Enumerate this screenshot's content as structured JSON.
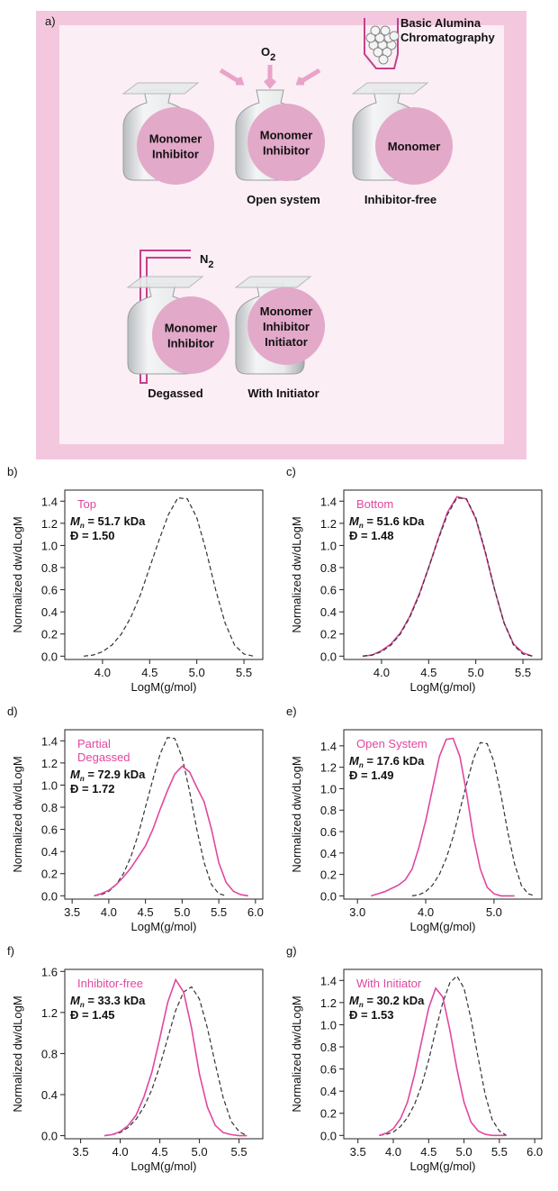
{
  "diagram": {
    "panel_label": "a)",
    "oxygen": "O",
    "oxygen_sub": "2",
    "nitrogen": "N",
    "nitrogen_sub": "2",
    "column_label": [
      "Basic Alumina",
      "Chromatography"
    ],
    "vials": [
      {
        "contents": [
          "Monomer",
          "Inhibitor"
        ]
      },
      {
        "contents": [
          "Monomer",
          "Inhibitor"
        ],
        "caption": "Open system"
      },
      {
        "contents": [
          "Monomer"
        ],
        "caption": "Inhibitor-free"
      },
      {
        "contents": [
          "Monomer",
          "Inhibitor"
        ],
        "caption": "Degassed"
      },
      {
        "contents": [
          "Monomer",
          "Inhibitor",
          "Initiator"
        ],
        "caption": "With Initiator"
      }
    ]
  },
  "chart_data": [
    {
      "type": "line",
      "panel_label": "b)",
      "annotation": [
        "Top"
      ],
      "mn_symbol": "M",
      "mn_subscript": "n",
      "mn_value": " = 51.7 kDa",
      "dispersity": "Đ = 1.50",
      "x_label": "LogM(g/mol)",
      "y_label": "Normalized dw/dLogM",
      "x": [
        3.8,
        3.9,
        4.0,
        4.1,
        4.2,
        4.3,
        4.4,
        4.5,
        4.6,
        4.7,
        4.8,
        4.9,
        5.0,
        5.1,
        5.2,
        5.3,
        5.4,
        5.5,
        5.6
      ],
      "series": [
        {
          "color": "#333333",
          "dashed": true,
          "values": [
            0,
            0.01,
            0.04,
            0.1,
            0.2,
            0.35,
            0.55,
            0.8,
            1.05,
            1.28,
            1.43,
            1.42,
            1.25,
            0.95,
            0.6,
            0.3,
            0.1,
            0.02,
            0
          ]
        }
      ],
      "xlim": [
        3.6,
        5.7
      ],
      "ylim": [
        -0.03,
        1.5
      ],
      "xticks": [
        {
          "value": 4.0,
          "label": "4.0"
        },
        4.5,
        {
          "value": 5.0,
          "label": "5.0"
        },
        5.5
      ],
      "yticks": [
        {
          "value": 0,
          "label": "0.0"
        },
        0.2,
        0.4,
        0.6,
        0.8,
        {
          "value": 1,
          "label": "1.0"
        },
        1.2,
        1.4
      ]
    },
    {
      "type": "line",
      "panel_label": "c)",
      "annotation": [
        "Bottom"
      ],
      "mn_symbol": "M",
      "mn_subscript": "n",
      "mn_value": " = 51.6 kDa",
      "dispersity": "Đ = 1.48",
      "x_label": "LogM(g/mol)",
      "y_label": "Normalized dw/dLogM",
      "x": [
        3.8,
        3.9,
        4.0,
        4.1,
        4.2,
        4.3,
        4.4,
        4.5,
        4.6,
        4.7,
        4.8,
        4.9,
        5.0,
        5.1,
        5.2,
        5.3,
        5.4,
        5.5,
        5.6
      ],
      "series": [
        {
          "color": "#e0479e",
          "dashed": false,
          "values": [
            0,
            0.01,
            0.05,
            0.11,
            0.21,
            0.36,
            0.56,
            0.8,
            1.06,
            1.3,
            1.44,
            1.42,
            1.24,
            0.94,
            0.6,
            0.3,
            0.11,
            0.03,
            0
          ]
        },
        {
          "color": "#333333",
          "dashed": true,
          "values": [
            0,
            0.01,
            0.04,
            0.1,
            0.2,
            0.35,
            0.55,
            0.8,
            1.05,
            1.28,
            1.43,
            1.42,
            1.25,
            0.95,
            0.6,
            0.3,
            0.1,
            0.02,
            0
          ]
        }
      ],
      "xlim": [
        3.6,
        5.7
      ],
      "ylim": [
        -0.03,
        1.5
      ],
      "xticks": [
        {
          "value": 4.0,
          "label": "4.0"
        },
        4.5,
        {
          "value": 5.0,
          "label": "5.0"
        },
        5.5
      ],
      "yticks": [
        {
          "value": 0,
          "label": "0.0"
        },
        0.2,
        0.4,
        0.6,
        0.8,
        {
          "value": 1,
          "label": "1.0"
        },
        1.2,
        1.4
      ]
    },
    {
      "type": "line",
      "panel_label": "d)",
      "annotation": [
        "Partial",
        "Degassed"
      ],
      "mn_symbol": "M",
      "mn_subscript": "n",
      "mn_value": " = 72.9 kDa",
      "dispersity": "Đ = 1.72",
      "x_label": "LogM(g/mol)",
      "y_label": "Normalized dw/dLogM",
      "x": [
        3.8,
        3.9,
        4.0,
        4.1,
        4.2,
        4.3,
        4.4,
        4.5,
        4.6,
        4.7,
        4.8,
        4.9,
        5.0,
        5.1,
        5.2,
        5.3,
        5.4,
        5.5,
        5.6,
        5.7,
        5.8,
        5.9
      ],
      "series": [
        {
          "color": "#333333",
          "dashed": true,
          "values": [
            0,
            0.01,
            0.04,
            0.1,
            0.2,
            0.35,
            0.55,
            0.8,
            1.05,
            1.28,
            1.43,
            1.42,
            1.25,
            0.95,
            0.6,
            0.3,
            0.1,
            0.02,
            0,
            null,
            null,
            null
          ]
        },
        {
          "color": "#e0479e",
          "dashed": false,
          "values": [
            0,
            0.02,
            0.05,
            0.1,
            0.17,
            0.25,
            0.35,
            0.45,
            0.6,
            0.78,
            0.95,
            1.1,
            1.17,
            1.12,
            0.98,
            0.85,
            0.6,
            0.3,
            0.12,
            0.04,
            0.01,
            0
          ]
        }
      ],
      "xlim": [
        3.4,
        6.1
      ],
      "ylim": [
        -0.03,
        1.5
      ],
      "xticks": [
        3.5,
        {
          "value": 4.0,
          "label": "4.0"
        },
        4.5,
        {
          "value": 5.0,
          "label": "5.0"
        },
        5.5,
        {
          "value": 6.0,
          "label": "6.0"
        }
      ],
      "yticks": [
        {
          "value": 0,
          "label": "0.0"
        },
        0.2,
        0.4,
        0.6,
        0.8,
        {
          "value": 1,
          "label": "1.0"
        },
        1.2,
        1.4
      ]
    },
    {
      "type": "line",
      "panel_label": "e)",
      "annotation": [
        "Open System"
      ],
      "mn_symbol": "M",
      "mn_subscript": "n",
      "mn_value": " = 17.6 kDa",
      "dispersity": "Đ = 1.49",
      "x_label": "LogM(g/mol)",
      "y_label": "Normalized dw/dLogM",
      "x": [
        3.2,
        3.3,
        3.4,
        3.5,
        3.6,
        3.7,
        3.8,
        3.9,
        4.0,
        4.1,
        4.2,
        4.3,
        4.4,
        4.5,
        4.6,
        4.7,
        4.8,
        4.9,
        5.0,
        5.1,
        5.2,
        5.3,
        5.4,
        5.5,
        5.6
      ],
      "series": [
        {
          "color": "#333333",
          "dashed": true,
          "values": [
            null,
            null,
            null,
            null,
            null,
            null,
            0,
            0.01,
            0.04,
            0.1,
            0.2,
            0.35,
            0.55,
            0.8,
            1.05,
            1.28,
            1.43,
            1.42,
            1.25,
            0.95,
            0.6,
            0.3,
            0.1,
            0.02,
            0
          ]
        },
        {
          "color": "#e0479e",
          "dashed": false,
          "values": [
            0,
            0.02,
            0.04,
            0.07,
            0.1,
            0.15,
            0.25,
            0.45,
            0.7,
            1.0,
            1.3,
            1.46,
            1.47,
            1.3,
            0.95,
            0.55,
            0.25,
            0.08,
            0.02,
            0,
            0,
            0,
            null,
            null,
            null
          ]
        }
      ],
      "xlim": [
        2.8,
        5.7
      ],
      "ylim": [
        -0.03,
        1.55
      ],
      "xticks": [
        {
          "value": 3.0,
          "label": "3.0"
        },
        {
          "value": 4.0,
          "label": "4.0"
        },
        {
          "value": 5.0,
          "label": "5.0"
        }
      ],
      "yticks": [
        {
          "value": 0,
          "label": "0.0"
        },
        0.2,
        0.4,
        0.6,
        0.8,
        {
          "value": 1,
          "label": "1.0"
        },
        1.2,
        1.4
      ]
    },
    {
      "type": "line",
      "panel_label": "f)",
      "annotation": [
        "Inhibitor-free"
      ],
      "mn_symbol": "M",
      "mn_subscript": "n",
      "mn_value": " = 33.3 kDa",
      "dispersity": "Đ = 1.45",
      "x_label": "LogM(g/mol)",
      "y_label": "Normalized dw/dLogM",
      "x": [
        3.8,
        3.9,
        4.0,
        4.1,
        4.2,
        4.3,
        4.4,
        4.5,
        4.6,
        4.7,
        4.8,
        4.9,
        5.0,
        5.1,
        5.2,
        5.3,
        5.4,
        5.5,
        5.6
      ],
      "series": [
        {
          "color": "#333333",
          "dashed": true,
          "values": [
            0,
            0.01,
            0.03,
            0.08,
            0.16,
            0.28,
            0.45,
            0.68,
            0.95,
            1.22,
            1.4,
            1.45,
            1.33,
            1.05,
            0.7,
            0.37,
            0.14,
            0.04,
            0
          ]
        },
        {
          "color": "#e0479e",
          "dashed": false,
          "values": [
            0,
            0.01,
            0.04,
            0.1,
            0.2,
            0.38,
            0.62,
            0.95,
            1.3,
            1.52,
            1.4,
            1.05,
            0.6,
            0.28,
            0.1,
            0.03,
            0.01,
            0,
            0
          ]
        }
      ],
      "xlim": [
        3.3,
        5.8
      ],
      "ylim": [
        -0.03,
        1.62
      ],
      "xticks": [
        3.5,
        {
          "value": 4.0,
          "label": "4.0"
        },
        4.5,
        {
          "value": 5.0,
          "label": "5.0"
        },
        5.5
      ],
      "yticks": [
        {
          "value": 0,
          "label": "0.0"
        },
        0.4,
        0.8,
        1.2,
        1.6
      ]
    },
    {
      "type": "line",
      "panel_label": "g)",
      "annotation": [
        "With Initiator"
      ],
      "mn_symbol": "M",
      "mn_subscript": "n",
      "mn_value": " = 30.2 kDa",
      "dispersity": "Đ = 1.53",
      "x_label": "LogM(g/mol)",
      "y_label": "Normalized dw/dLogM",
      "x": [
        3.8,
        3.9,
        4.0,
        4.1,
        4.2,
        4.3,
        4.4,
        4.5,
        4.6,
        4.7,
        4.8,
        4.9,
        5.0,
        5.1,
        5.2,
        5.3,
        5.4,
        5.5,
        5.6
      ],
      "series": [
        {
          "color": "#333333",
          "dashed": true,
          "values": [
            0,
            0.01,
            0.03,
            0.08,
            0.16,
            0.28,
            0.45,
            0.68,
            0.95,
            1.2,
            1.38,
            1.44,
            1.33,
            1.05,
            0.7,
            0.37,
            0.14,
            0.04,
            0
          ]
        },
        {
          "color": "#e0479e",
          "dashed": false,
          "values": [
            0,
            0.02,
            0.06,
            0.15,
            0.3,
            0.55,
            0.85,
            1.15,
            1.33,
            1.25,
            0.95,
            0.6,
            0.3,
            0.12,
            0.04,
            0.01,
            0,
            0,
            0
          ]
        }
      ],
      "xlim": [
        3.3,
        6.1
      ],
      "ylim": [
        -0.03,
        1.5
      ],
      "xticks": [
        3.5,
        {
          "value": 4.0,
          "label": "4.0"
        },
        4.5,
        {
          "value": 5.0,
          "label": "5.0"
        },
        5.5,
        {
          "value": 6.0,
          "label": "6.0"
        }
      ],
      "yticks": [
        {
          "value": 0,
          "label": "0.0"
        },
        0.2,
        0.4,
        0.6,
        0.8,
        {
          "value": 1,
          "label": "1.0"
        },
        1.2,
        1.4
      ]
    }
  ]
}
